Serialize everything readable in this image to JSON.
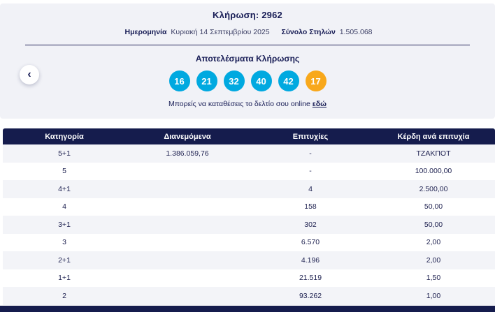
{
  "header": {
    "draw_title": "Κλήρωση: 2962",
    "date_label": "Ημερομηνία",
    "date_value": "Κυριακή 14 Σεπτεμβρίου 2025",
    "columns_label": "Σύνολο Στηλών",
    "columns_value": "1.505.068",
    "results_title": "Αποτελέσματα Κλήρωσης",
    "numbers": [
      "16",
      "21",
      "32",
      "40",
      "42"
    ],
    "joker": "17",
    "online_text": "Μπορείς να καταθέσεις το δελτίο σου online",
    "online_link": "εδώ",
    "back_icon": "‹"
  },
  "table": {
    "headers": [
      "Κατηγορία",
      "Διανεμόμενα",
      "Επιτυχίες",
      "Κέρδη ανά επιτυχία"
    ],
    "rows": [
      {
        "category": "5+1",
        "distributed": "1.386.059,76",
        "winners": "-",
        "prize": "ΤΖΑΚΠΟΤ"
      },
      {
        "category": "5",
        "distributed": "",
        "winners": "-",
        "prize": "100.000,00"
      },
      {
        "category": "4+1",
        "distributed": "",
        "winners": "4",
        "prize": "2.500,00"
      },
      {
        "category": "4",
        "distributed": "",
        "winners": "158",
        "prize": "50,00"
      },
      {
        "category": "3+1",
        "distributed": "",
        "winners": "302",
        "prize": "50,00"
      },
      {
        "category": "3",
        "distributed": "",
        "winners": "6.570",
        "prize": "2,00"
      },
      {
        "category": "2+1",
        "distributed": "",
        "winners": "4.196",
        "prize": "2,00"
      },
      {
        "category": "1+1",
        "distributed": "",
        "winners": "21.519",
        "prize": "1,50"
      },
      {
        "category": "2",
        "distributed": "",
        "winners": "93.262",
        "prize": "1,00"
      }
    ]
  },
  "colors": {
    "navy": "#151c4d",
    "ball_cyan": "#00a9e0",
    "ball_orange": "#f8a81b",
    "card_bg": "#f1f2f7"
  }
}
